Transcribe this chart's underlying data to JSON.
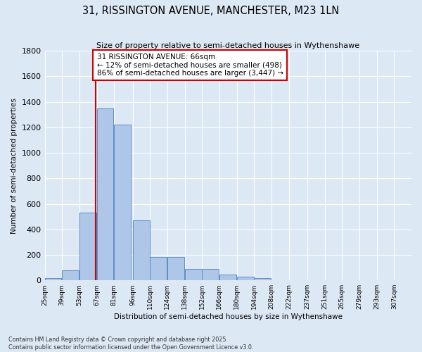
{
  "title": "31, RISSINGTON AVENUE, MANCHESTER, M23 1LN",
  "subtitle": "Size of property relative to semi-detached houses in Wythenshawe",
  "xlabel": "Distribution of semi-detached houses by size in Wythenshawe",
  "ylabel": "Number of semi-detached properties",
  "footnote": "Contains HM Land Registry data © Crown copyright and database right 2025.\nContains public sector information licensed under the Open Government Licence v3.0.",
  "bin_labels": [
    "25sqm",
    "39sqm",
    "53sqm",
    "67sqm",
    "81sqm",
    "96sqm",
    "110sqm",
    "124sqm",
    "138sqm",
    "152sqm",
    "166sqm",
    "180sqm",
    "194sqm",
    "208sqm",
    "222sqm",
    "237sqm",
    "251sqm",
    "265sqm",
    "279sqm",
    "293sqm",
    "307sqm"
  ],
  "bin_edges": [
    25,
    39,
    53,
    67,
    81,
    96,
    110,
    124,
    138,
    152,
    166,
    180,
    194,
    208,
    222,
    237,
    251,
    265,
    279,
    293,
    307
  ],
  "bar_values": [
    15,
    80,
    530,
    1350,
    1220,
    470,
    185,
    185,
    90,
    90,
    45,
    30,
    20,
    0,
    0,
    0,
    0,
    0,
    0,
    0
  ],
  "bar_color": "#aec6e8",
  "bar_edge_color": "#5b8fc9",
  "property_size": 66,
  "marker_color": "#cc0000",
  "annotation_title": "31 RISSINGTON AVENUE: 66sqm",
  "annotation_line1": "← 12% of semi-detached houses are smaller (498)",
  "annotation_line2": "86% of semi-detached houses are larger (3,447) →",
  "annotation_box_color": "#ffffff",
  "annotation_box_edge": "#cc0000",
  "ylim": [
    0,
    1800
  ],
  "yticks": [
    0,
    200,
    400,
    600,
    800,
    1000,
    1200,
    1400,
    1600,
    1800
  ],
  "background_color": "#dde8f5",
  "plot_background": "#dde8f5",
  "grid_color": "#ffffff",
  "font_family": "DejaVu Sans"
}
